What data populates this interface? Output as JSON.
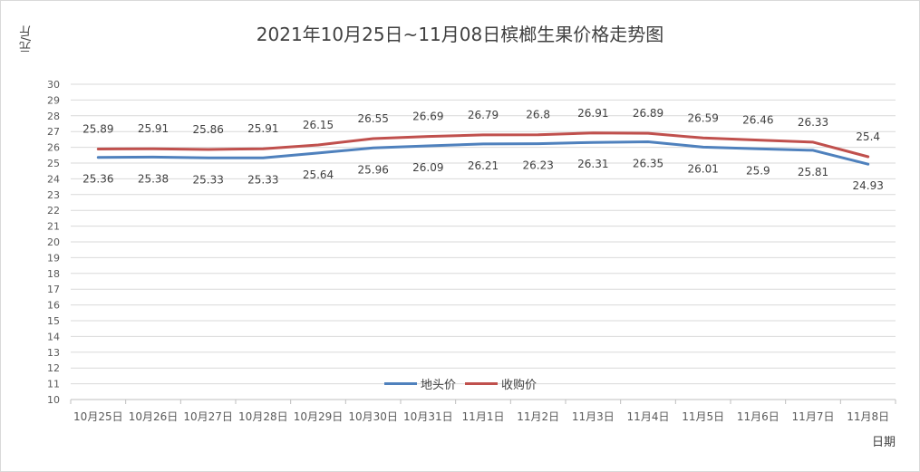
{
  "chart_data": {
    "type": "line",
    "title": "2021年10月25日~11月08日槟榔生果价格走势图",
    "xlabel": "日期",
    "ylabel": "元/斤",
    "ylim": [
      10,
      30
    ],
    "yticks": [
      10,
      11,
      12,
      13,
      14,
      15,
      16,
      17,
      18,
      19,
      20,
      21,
      22,
      23,
      24,
      25,
      26,
      27,
      28,
      29,
      30
    ],
    "grid": true,
    "legend_position": "bottom-center",
    "categories": [
      "10月25日",
      "10月26日",
      "10月27日",
      "10月28日",
      "10月29日",
      "10月30日",
      "10月31日",
      "11月1日",
      "11月2日",
      "11月3日",
      "11月4日",
      "11月5日",
      "11月6日",
      "11月7日",
      "11月8日"
    ],
    "series": [
      {
        "name": "地头价",
        "color": "#4f81bd",
        "values": [
          25.36,
          25.38,
          25.33,
          25.33,
          25.64,
          25.96,
          26.09,
          26.21,
          26.23,
          26.31,
          26.35,
          26.01,
          25.9,
          25.81,
          24.93
        ],
        "labels": [
          "25.36",
          "25.38",
          "25.33",
          "25.33",
          "25.64",
          "25.96",
          "26.09",
          "26.21",
          "26.23",
          "26.31",
          "26.35",
          "26.01",
          "25.9",
          "25.81",
          "24.93"
        ]
      },
      {
        "name": "收购价",
        "color": "#c0504d",
        "values": [
          25.89,
          25.91,
          25.86,
          25.91,
          26.15,
          26.55,
          26.69,
          26.79,
          26.8,
          26.91,
          26.89,
          26.59,
          26.46,
          26.33,
          25.4
        ],
        "labels": [
          "25.89",
          "25.91",
          "25.86",
          "25.91",
          "26.15",
          "26.55",
          "26.69",
          "26.79",
          "26.8",
          "26.91",
          "26.89",
          "26.59",
          "26.46",
          "26.33",
          "25.4"
        ]
      }
    ]
  }
}
